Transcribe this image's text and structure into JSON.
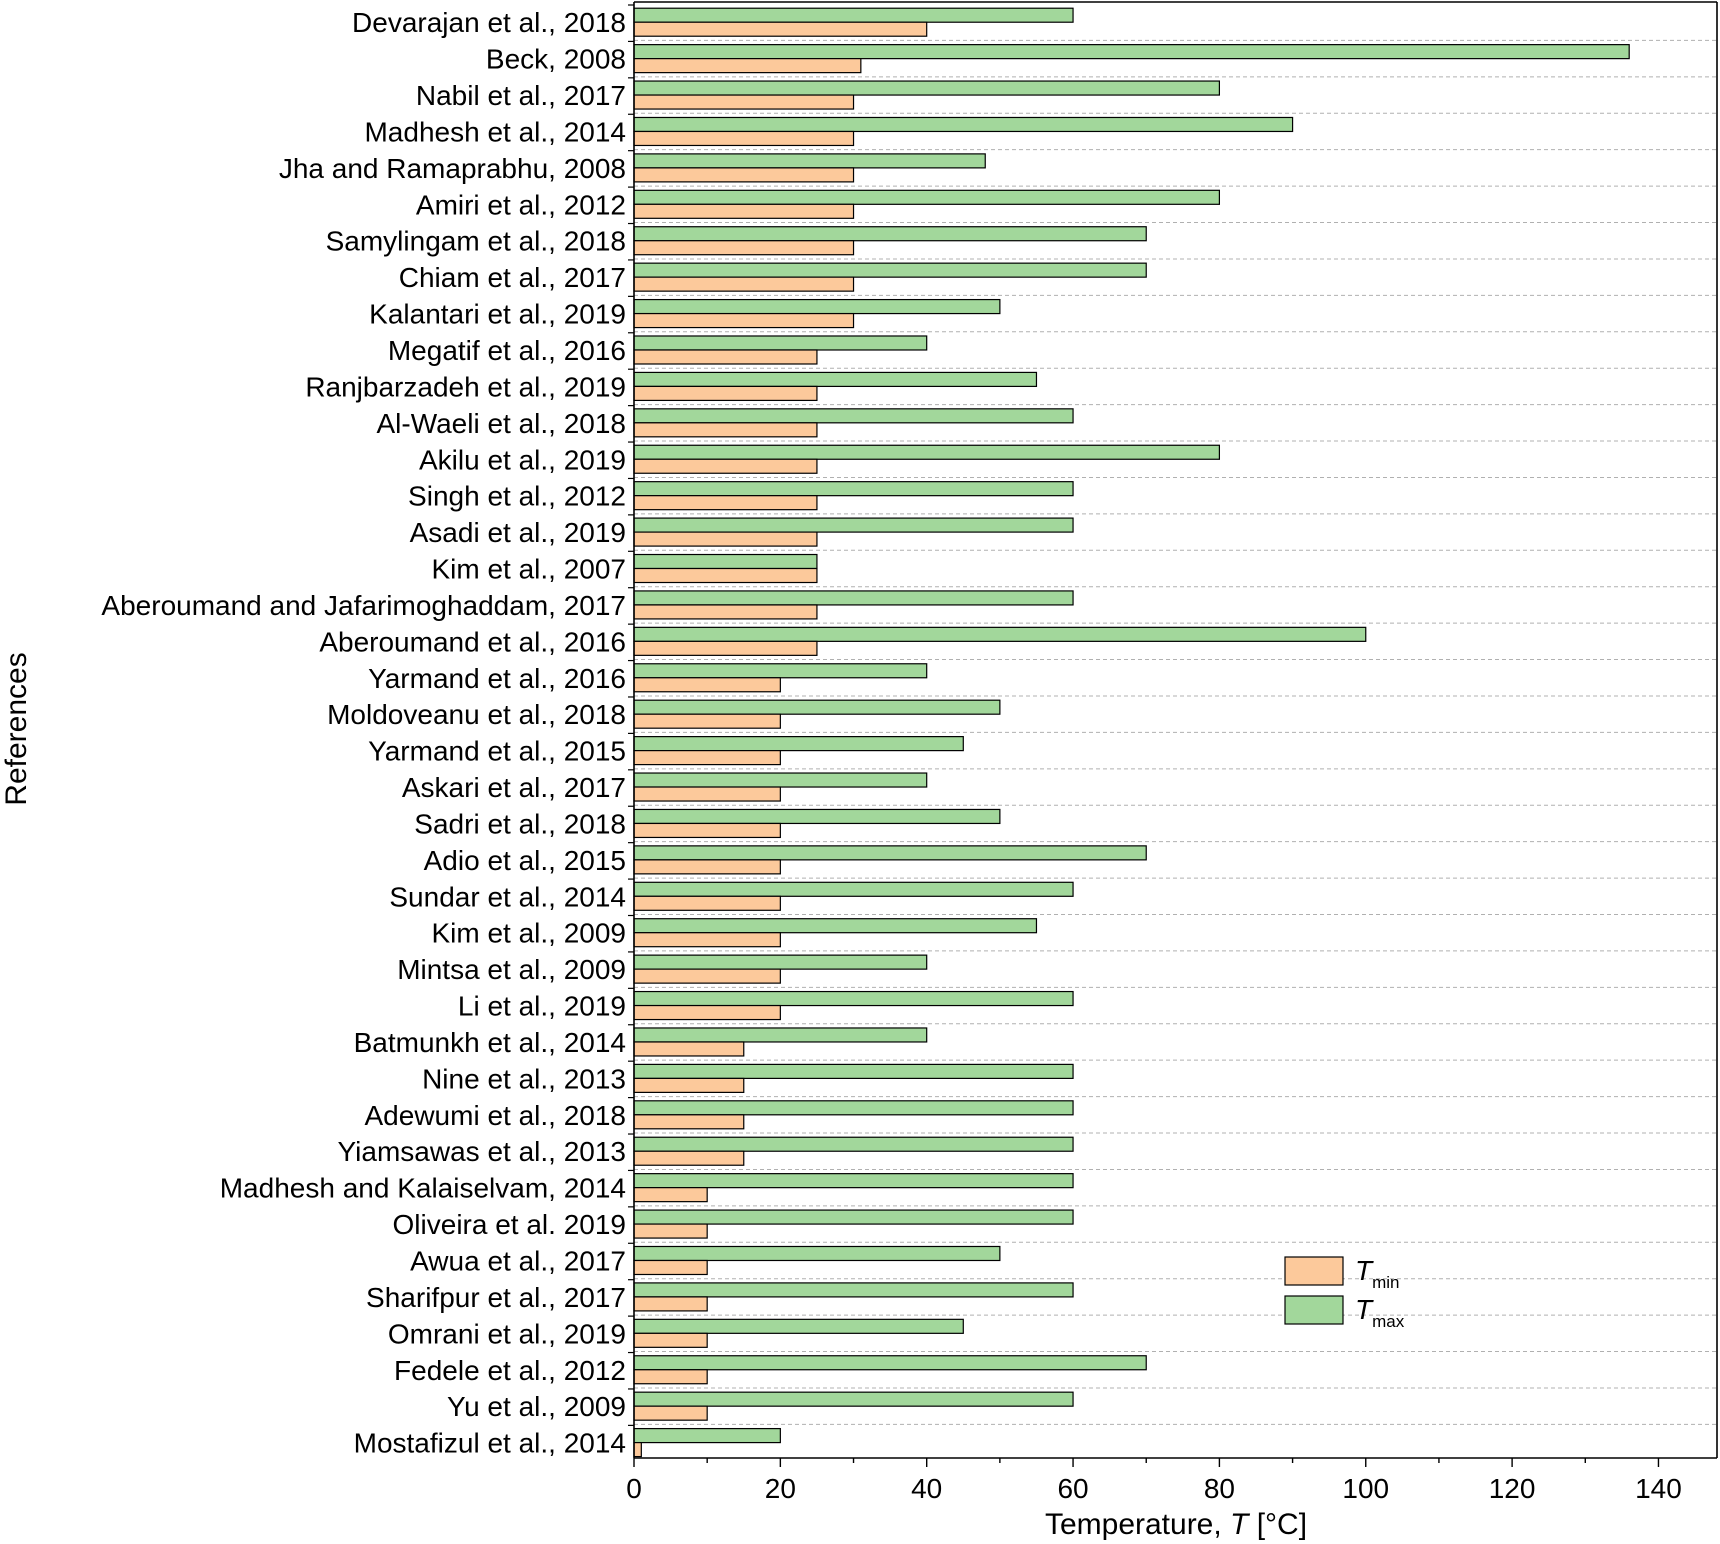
{
  "chart_data": {
    "type": "bar",
    "orientation": "horizontal",
    "title": "",
    "xlabel_prefix": "Temperature, ",
    "xlabel_var": "T",
    "xlabel_unit": " [°C]",
    "ylabel": "References",
    "xlim": [
      0,
      148
    ],
    "xticks": [
      0,
      20,
      40,
      60,
      80,
      100,
      120,
      140
    ],
    "grid": "horizontal-dashed",
    "legend_position": "lower-right",
    "categories": [
      "Devarajan et al., 2018",
      "Beck, 2008",
      "Nabil et al., 2017",
      "Madhesh et al., 2014",
      "Jha and Ramaprabhu, 2008",
      "Amiri et al., 2012",
      "Samylingam et al., 2018",
      "Chiam et al., 2017",
      "Kalantari et al., 2019",
      "Megatif et al., 2016",
      "Ranjbarzadeh et al., 2019",
      "Al-Waeli et al., 2018",
      "Akilu et al., 2019",
      "Singh et al., 2012",
      "Asadi et al., 2019",
      "Kim et al., 2007",
      "Aberoumand and Jafarimoghaddam, 2017",
      "Aberoumand et al., 2016",
      "Yarmand et al., 2016",
      "Moldoveanu et al., 2018",
      "Yarmand et al., 2015",
      "Askari et al., 2017",
      "Sadri et al., 2018",
      "Adio et al., 2015",
      "Sundar et al., 2014",
      "Kim et al., 2009",
      "Mintsa et al., 2009",
      "Li et al., 2019",
      "Batmunkh et al., 2014",
      "Nine et al., 2013",
      "Adewumi et al., 2018",
      "Yiamsawas et al., 2013",
      "Madhesh and Kalaiselvam, 2014",
      "Oliveira et al. 2019",
      "Awua et al., 2017",
      "Sharifpur et al., 2017",
      "Omrani et al., 2019",
      "Fedele et al., 2012",
      "Yu et al., 2009",
      "Mostafizul et al., 2014"
    ],
    "series": [
      {
        "name": "T_min",
        "label_main": "T",
        "label_sub": "min",
        "color": "#fcc99b",
        "values": [
          40,
          31,
          30,
          30,
          30,
          30,
          30,
          30,
          30,
          25,
          25,
          25,
          25,
          25,
          25,
          25,
          25,
          25,
          20,
          20,
          20,
          20,
          20,
          20,
          20,
          20,
          20,
          20,
          15,
          15,
          15,
          15,
          10,
          10,
          10,
          10,
          10,
          10,
          10,
          1
        ]
      },
      {
        "name": "T_max",
        "label_main": "T",
        "label_sub": "max",
        "color": "#a2d79b",
        "values": [
          60,
          136,
          80,
          90,
          48,
          80,
          70,
          70,
          50,
          40,
          55,
          60,
          80,
          60,
          60,
          25,
          60,
          100,
          40,
          50,
          45,
          40,
          50,
          70,
          60,
          55,
          40,
          60,
          40,
          60,
          60,
          60,
          60,
          60,
          50,
          60,
          45,
          70,
          60,
          20
        ]
      }
    ]
  }
}
